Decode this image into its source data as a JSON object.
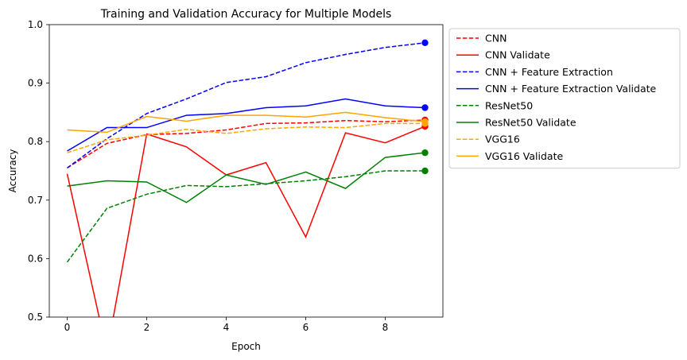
{
  "chart_data": {
    "type": "line",
    "title": "Training and Validation Accuracy for Multiple Models",
    "xlabel": "Epoch",
    "ylabel": "Accuracy",
    "xlim": [
      -0.45,
      9.45
    ],
    "ylim": [
      0.5,
      1.0
    ],
    "x_ticks": [
      0,
      2,
      4,
      6,
      8
    ],
    "y_ticks": [
      0.5,
      0.6,
      0.7,
      0.8,
      0.9,
      1.0
    ],
    "y_tick_labels": [
      "0.5",
      "0.6",
      "0.7",
      "0.8",
      "0.9",
      "1.0"
    ],
    "grid": false,
    "legend_position": "outside-right",
    "x": [
      0,
      1,
      2,
      3,
      4,
      5,
      6,
      7,
      8,
      9
    ],
    "series": [
      {
        "name": "CNN",
        "color": "#ff0000",
        "style": "dashed",
        "values": [
          0.755,
          0.797,
          0.812,
          0.814,
          0.82,
          0.831,
          0.832,
          0.836,
          0.834,
          0.837
        ]
      },
      {
        "name": "CNN Validate",
        "color": "#ff0000",
        "style": "solid",
        "values": [
          0.745,
          0.44,
          0.813,
          0.791,
          0.743,
          0.764,
          0.637,
          0.815,
          0.798,
          0.826
        ]
      },
      {
        "name": "CNN + Feature Extraction",
        "color": "#0000ff",
        "style": "dashed",
        "values": [
          0.755,
          0.805,
          0.848,
          0.873,
          0.901,
          0.911,
          0.935,
          0.949,
          0.961,
          0.969
        ]
      },
      {
        "name": "CNN + Feature Extraction Validate",
        "color": "#0000ff",
        "style": "solid",
        "values": [
          0.784,
          0.824,
          0.824,
          0.845,
          0.848,
          0.858,
          0.861,
          0.873,
          0.861,
          0.858
        ]
      },
      {
        "name": "ResNet50",
        "color": "#008000",
        "style": "dashed",
        "values": [
          0.594,
          0.686,
          0.71,
          0.725,
          0.723,
          0.728,
          0.733,
          0.74,
          0.75,
          0.75
        ]
      },
      {
        "name": "ResNet50 Validate",
        "color": "#008000",
        "style": "solid",
        "values": [
          0.724,
          0.733,
          0.731,
          0.696,
          0.743,
          0.727,
          0.748,
          0.72,
          0.773,
          0.781
        ]
      },
      {
        "name": "VGG16",
        "color": "#ffa500",
        "style": "dashed",
        "values": [
          0.781,
          0.803,
          0.811,
          0.821,
          0.814,
          0.822,
          0.825,
          0.824,
          0.831,
          0.831
        ]
      },
      {
        "name": "VGG16 Validate",
        "color": "#ffa500",
        "style": "solid",
        "values": [
          0.82,
          0.816,
          0.843,
          0.835,
          0.845,
          0.845,
          0.842,
          0.85,
          0.841,
          0.834
        ]
      }
    ],
    "final_point_markers": true
  }
}
